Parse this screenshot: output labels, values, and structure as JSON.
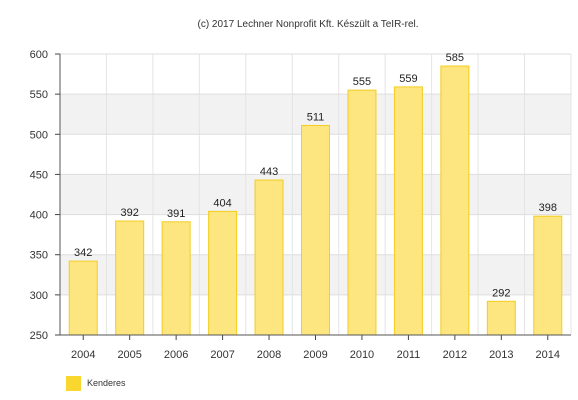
{
  "credit": "(c) 2017 Lechner Nonprofit Kft. Készült a TeIR-rel.",
  "chart_data": {
    "type": "bar",
    "categories": [
      "2004",
      "2005",
      "2006",
      "2007",
      "2008",
      "2009",
      "2010",
      "2011",
      "2012",
      "2013",
      "2014"
    ],
    "series": [
      {
        "name": "Kenderes",
        "color": "#f9d72f",
        "values": [
          342,
          392,
          391,
          404,
          443,
          511,
          555,
          559,
          585,
          292,
          398
        ]
      }
    ],
    "ylim": [
      250,
      600
    ],
    "yticks": [
      250,
      300,
      350,
      400,
      450,
      500,
      550,
      600
    ],
    "grid": true,
    "legend": "bottom-left",
    "data_labels": true
  }
}
